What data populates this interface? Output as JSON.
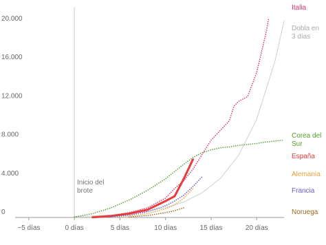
{
  "chart_data": {
    "type": "line",
    "annotation": "Inicio del brote",
    "xlim": [
      -6.5,
      23
    ],
    "ylim": [
      0,
      20500
    ],
    "xticks": [
      {
        "value": -5,
        "label": "−5 días"
      },
      {
        "value": 0,
        "label": "0 días"
      },
      {
        "value": 5,
        "label": "5 días"
      },
      {
        "value": 10,
        "label": "10 días"
      },
      {
        "value": 15,
        "label": "15 días"
      },
      {
        "value": 20,
        "label": "20 días"
      }
    ],
    "yticks": [
      0,
      {
        "value": 4000,
        "label": "4.000"
      },
      {
        "value": 8000,
        "label": "8.000"
      },
      {
        "value": 12000,
        "label": "12.000"
      },
      {
        "value": 16000,
        "label": "16.000"
      },
      {
        "value": 20000,
        "label": "20.000"
      }
    ],
    "grid": false,
    "series": [
      {
        "name": "Italia",
        "color": "#e0306e",
        "style": "dotted",
        "x": [
          4,
          6,
          8,
          10,
          11,
          12,
          13,
          14,
          15,
          16,
          17,
          17.5,
          18,
          19,
          20,
          21,
          21.3
        ],
        "values": [
          200,
          500,
          1000,
          2000,
          3000,
          3800,
          5000,
          6500,
          8000,
          9000,
          10000,
          11500,
          12000,
          12500,
          15000,
          19000,
          20500
        ]
      },
      {
        "name": "Dobla en 3 días",
        "color": "#d0d0d0",
        "style": "solid",
        "x": [
          0,
          2,
          4,
          6,
          8,
          10,
          12,
          14,
          16,
          18,
          20,
          22,
          23
        ],
        "values": [
          100,
          159,
          252,
          400,
          635,
          1008,
          1600,
          2540,
          4032,
          6400,
          10159,
          16127,
          20319
        ]
      },
      {
        "name": "Corea del Sur",
        "color": "#5a9e2f",
        "style": "dotted",
        "x": [
          0,
          2,
          4,
          6,
          8,
          10,
          12,
          13,
          14,
          15,
          16,
          17,
          18,
          19,
          20,
          21,
          22,
          23
        ],
        "values": [
          50,
          400,
          1000,
          1800,
          2800,
          4000,
          5500,
          6200,
          6700,
          7000,
          7200,
          7300,
          7450,
          7550,
          7650,
          7800,
          7900,
          8000
        ]
      },
      {
        "name": "España",
        "color": "#e63c3c",
        "style": "thick",
        "x": [
          2,
          4,
          6,
          8,
          10,
          11,
          12,
          13
        ],
        "values": [
          20,
          150,
          400,
          800,
          1700,
          2200,
          4000,
          6000
        ]
      },
      {
        "name": "Alemania",
        "color": "#e8a23a",
        "style": "dotted",
        "x": [
          4,
          6,
          8,
          10,
          11,
          12,
          13
        ],
        "values": [
          50,
          150,
          400,
          900,
          1300,
          2000,
          3000
        ]
      },
      {
        "name": "Francia",
        "color": "#6a5acd",
        "style": "dotted",
        "x": [
          4,
          6,
          8,
          10,
          11,
          12,
          13,
          14
        ],
        "values": [
          80,
          250,
          600,
          1200,
          1700,
          2300,
          3200,
          4200
        ]
      },
      {
        "name": "Noruega",
        "color": "#9b6a1a",
        "style": "dotted",
        "x": [
          6,
          8,
          10,
          11,
          12
        ],
        "values": [
          50,
          200,
          500,
          700,
          1000
        ]
      }
    ]
  }
}
